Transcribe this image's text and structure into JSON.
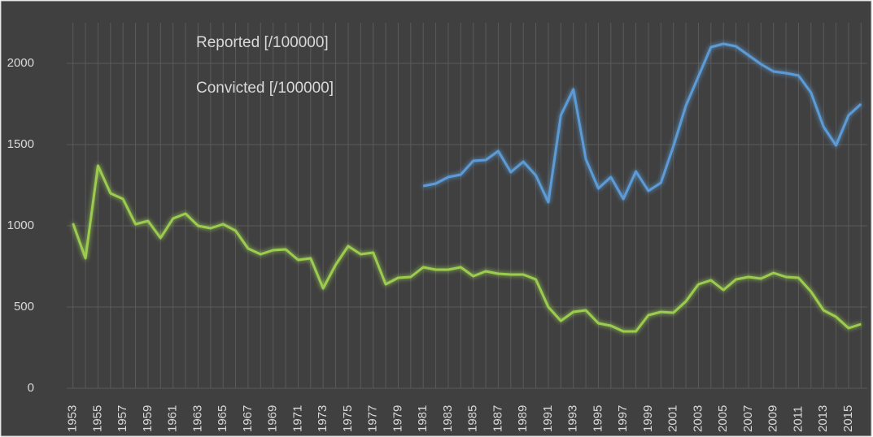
{
  "chart_data": {
    "type": "line",
    "x": [
      1953,
      1954,
      1955,
      1956,
      1957,
      1958,
      1959,
      1960,
      1961,
      1962,
      1963,
      1964,
      1965,
      1966,
      1967,
      1968,
      1969,
      1970,
      1971,
      1972,
      1973,
      1974,
      1975,
      1976,
      1977,
      1978,
      1979,
      1980,
      1981,
      1982,
      1983,
      1984,
      1985,
      1986,
      1987,
      1988,
      1989,
      1990,
      1991,
      1992,
      1993,
      1994,
      1995,
      1996,
      1997,
      1998,
      1999,
      2000,
      2001,
      2002,
      2003,
      2004,
      2005,
      2006,
      2007,
      2008,
      2009,
      2010,
      2011,
      2012,
      2013,
      2014,
      2015,
      2016
    ],
    "series": [
      {
        "name": "Reported [/100000]",
        "color": "#5b9bd5",
        "values": [
          null,
          null,
          null,
          null,
          null,
          null,
          null,
          null,
          null,
          null,
          null,
          null,
          null,
          null,
          null,
          null,
          null,
          null,
          null,
          null,
          null,
          null,
          null,
          null,
          null,
          null,
          null,
          null,
          1245,
          1260,
          1300,
          1315,
          1400,
          1405,
          1460,
          1330,
          1395,
          1310,
          1145,
          1680,
          1840,
          1410,
          1230,
          1300,
          1165,
          1335,
          1215,
          1265,
          1490,
          1740,
          1920,
          2100,
          2120,
          2105,
          2050,
          1995,
          1950,
          1940,
          1925,
          1820,
          1610,
          1495,
          1680,
          1750
        ]
      },
      {
        "name": "Convicted [/100000]",
        "color": "#9bcc4f",
        "values": [
          1015,
          800,
          1370,
          1200,
          1165,
          1010,
          1030,
          925,
          1045,
          1075,
          1000,
          985,
          1010,
          970,
          860,
          825,
          850,
          855,
          790,
          800,
          615,
          760,
          875,
          825,
          835,
          640,
          680,
          685,
          745,
          730,
          730,
          745,
          690,
          720,
          705,
          700,
          700,
          670,
          500,
          415,
          470,
          480,
          400,
          385,
          350,
          350,
          450,
          470,
          465,
          535,
          640,
          665,
          605,
          670,
          685,
          675,
          710,
          685,
          680,
          595,
          480,
          440,
          370,
          395
        ]
      }
    ],
    "xlim": [
      1952.5,
      2016.5
    ],
    "xticks": [
      1953,
      1955,
      1957,
      1959,
      1961,
      1963,
      1965,
      1967,
      1969,
      1971,
      1973,
      1975,
      1977,
      1979,
      1981,
      1983,
      1985,
      1987,
      1989,
      1991,
      1993,
      1995,
      1997,
      1999,
      2001,
      2003,
      2005,
      2007,
      2009,
      2011,
      2013,
      2015
    ],
    "ylim": [
      0,
      2250
    ],
    "yticks": [
      0,
      500,
      1000,
      1500,
      2000
    ],
    "grid": true
  }
}
